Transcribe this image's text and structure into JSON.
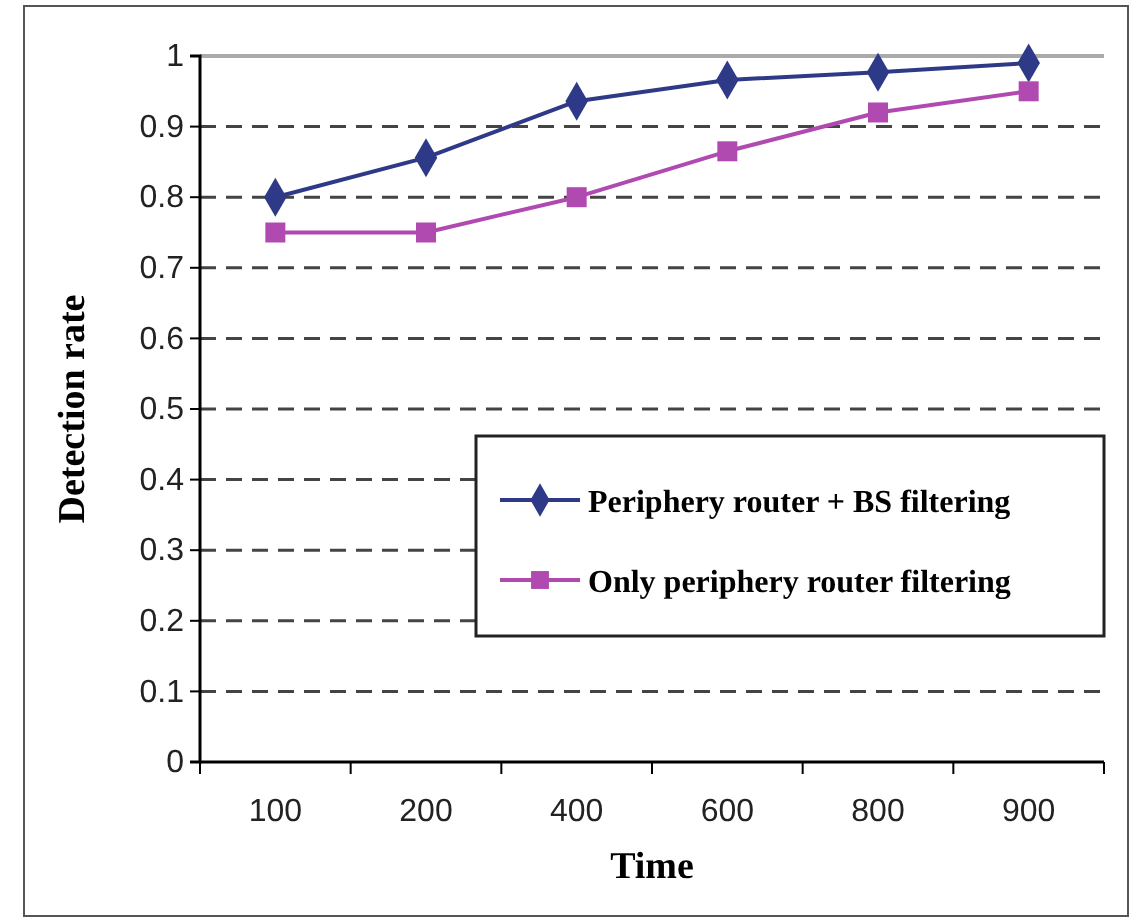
{
  "chart_data": {
    "type": "line",
    "xlabel": "Time",
    "ylabel": "Detection rate",
    "categories": [
      "100",
      "200",
      "400",
      "600",
      "800",
      "900"
    ],
    "series": [
      {
        "name": "Periphery router + BS filtering",
        "color": "#2e3a87",
        "marker": "diamond",
        "values": [
          0.8,
          0.856,
          0.936,
          0.966,
          0.977,
          0.99
        ]
      },
      {
        "name": "Only periphery router filtering",
        "color": "#b04ab0",
        "marker": "square",
        "values": [
          0.75,
          0.75,
          0.8,
          0.865,
          0.92,
          0.95
        ]
      }
    ],
    "ylim": [
      0,
      1
    ],
    "yticks": [
      0,
      0.1,
      0.2,
      0.3,
      0.4,
      0.5,
      0.6,
      0.7,
      0.8,
      0.9,
      1
    ],
    "grid": "y",
    "legend": "right"
  }
}
